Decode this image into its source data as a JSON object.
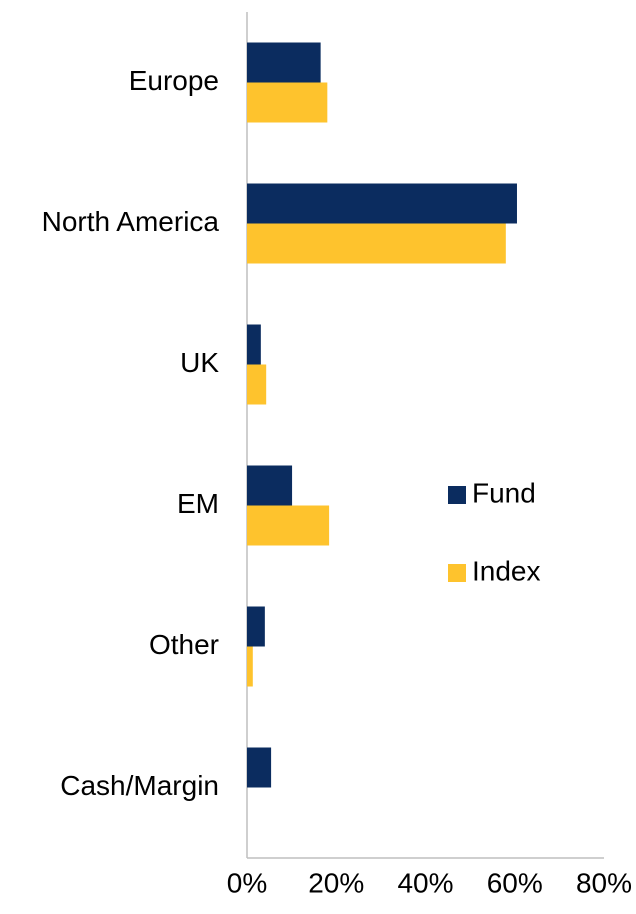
{
  "chart_data": {
    "type": "bar",
    "orientation": "horizontal",
    "categories": [
      "Europe",
      "North America",
      "UK",
      "EM",
      "Other",
      "Cash/Margin"
    ],
    "series": [
      {
        "name": "Fund",
        "color": "#0b2c5f",
        "values": [
          16.5,
          60.5,
          3.1,
          10.1,
          4,
          5.4
        ]
      },
      {
        "name": "Index",
        "color": "#fec32d",
        "values": [
          18,
          58,
          4.3,
          18.4,
          1.3,
          0
        ]
      }
    ],
    "xlim": [
      0,
      80
    ],
    "xticks": [
      {
        "value": 0,
        "label": "0%"
      },
      {
        "value": 20,
        "label": "20%"
      },
      {
        "value": 40,
        "label": "40%"
      },
      {
        "value": 60,
        "label": "60%"
      },
      {
        "value": 80,
        "label": "80%"
      }
    ],
    "grid": false,
    "legend": "right"
  }
}
